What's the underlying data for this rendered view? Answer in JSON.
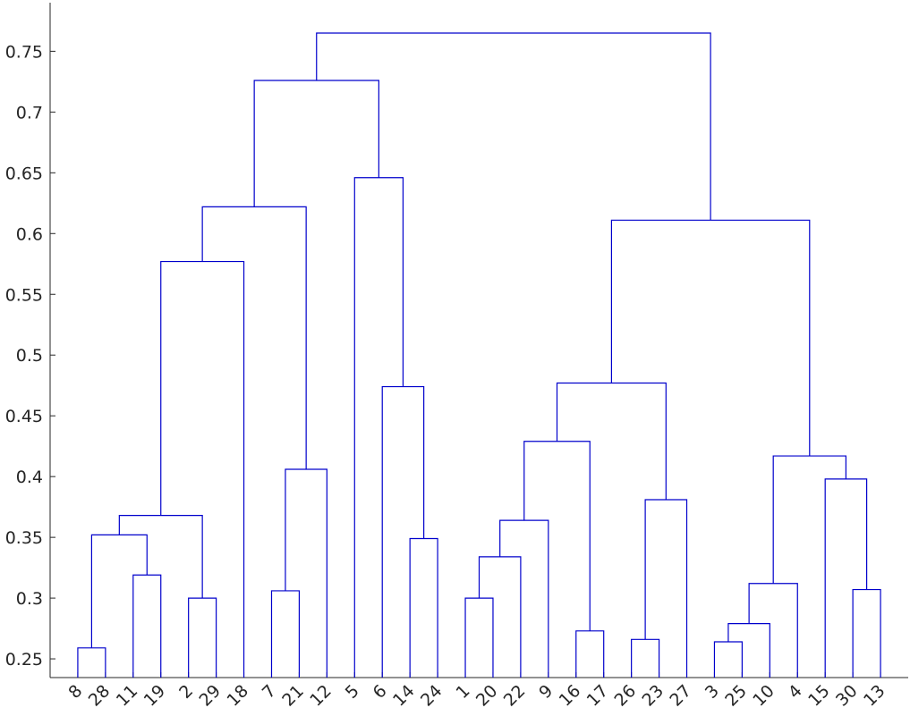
{
  "chart_data": {
    "type": "dendrogram",
    "leaves": [
      8,
      28,
      11,
      19,
      2,
      29,
      18,
      7,
      21,
      12,
      5,
      6,
      14,
      24,
      1,
      20,
      22,
      9,
      16,
      17,
      26,
      23,
      27,
      3,
      25,
      10,
      4,
      15,
      30,
      13
    ],
    "merges": [
      {
        "children": [
          0,
          1
        ],
        "height": 0.259
      },
      {
        "children": [
          2,
          3
        ],
        "height": 0.319
      },
      {
        "children": [
          30,
          31
        ],
        "height": 0.352
      },
      {
        "children": [
          4,
          5
        ],
        "height": 0.3
      },
      {
        "children": [
          32,
          33
        ],
        "height": 0.368
      },
      {
        "children": [
          34,
          6
        ],
        "height": 0.577
      },
      {
        "children": [
          7,
          8
        ],
        "height": 0.306
      },
      {
        "children": [
          36,
          9
        ],
        "height": 0.406
      },
      {
        "children": [
          35,
          37
        ],
        "height": 0.622
      },
      {
        "children": [
          12,
          13
        ],
        "height": 0.349
      },
      {
        "children": [
          11,
          39
        ],
        "height": 0.474
      },
      {
        "children": [
          10,
          40
        ],
        "height": 0.646
      },
      {
        "children": [
          38,
          41
        ],
        "height": 0.726
      },
      {
        "children": [
          14,
          15
        ],
        "height": 0.3
      },
      {
        "children": [
          43,
          16
        ],
        "height": 0.334
      },
      {
        "children": [
          44,
          17
        ],
        "height": 0.364
      },
      {
        "children": [
          18,
          19
        ],
        "height": 0.273
      },
      {
        "children": [
          45,
          46
        ],
        "height": 0.429
      },
      {
        "children": [
          20,
          21
        ],
        "height": 0.266
      },
      {
        "children": [
          48,
          22
        ],
        "height": 0.381
      },
      {
        "children": [
          47,
          49
        ],
        "height": 0.477
      },
      {
        "children": [
          23,
          24
        ],
        "height": 0.264
      },
      {
        "children": [
          51,
          25
        ],
        "height": 0.279
      },
      {
        "children": [
          52,
          26
        ],
        "height": 0.312
      },
      {
        "children": [
          28,
          29
        ],
        "height": 0.307
      },
      {
        "children": [
          27,
          54
        ],
        "height": 0.398
      },
      {
        "children": [
          53,
          55
        ],
        "height": 0.417
      },
      {
        "children": [
          50,
          56
        ],
        "height": 0.611
      },
      {
        "children": [
          42,
          57
        ],
        "height": 0.765
      }
    ],
    "color": "#0000cc",
    "xlim": [
      0,
      31
    ],
    "ylim": [
      0.2346,
      0.79
    ],
    "yticks": [
      0.25,
      0.3,
      0.35,
      0.4,
      0.45,
      0.5,
      0.55,
      0.6,
      0.65,
      0.7,
      0.75
    ]
  }
}
